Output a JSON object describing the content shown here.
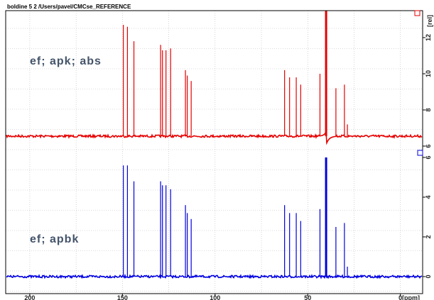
{
  "header": {
    "text": "boldine 5 2 /Users/pavel/CMCse_REFERENCE"
  },
  "colors": {
    "top_trace": "#e60000",
    "bottom_trace": "#0000e0",
    "grid": "#b8b8b8",
    "frame": "#000000",
    "label": "#44546a"
  },
  "chart_data": {
    "type": "line",
    "title": "",
    "xlabel": "[ppm]",
    "ylabel": "[rel]",
    "x_reversed": true,
    "xlim": [
      213,
      -12
    ],
    "xticks": [
      200,
      150,
      100,
      50,
      0
    ],
    "grid": true,
    "series": [
      {
        "name": "ef; apk; abs",
        "color": "#e60000",
        "baseline": 6.55,
        "yticks": [
          6,
          8,
          10,
          12
        ],
        "peaks": [
          {
            "x": 149.5,
            "y": 12.7
          },
          {
            "x": 147.3,
            "y": 12.6
          },
          {
            "x": 143.8,
            "y": 11.8
          },
          {
            "x": 129.4,
            "y": 11.6
          },
          {
            "x": 128.4,
            "y": 11.3
          },
          {
            "x": 126.5,
            "y": 11.3
          },
          {
            "x": 124.0,
            "y": 11.4
          },
          {
            "x": 116.0,
            "y": 10.2
          },
          {
            "x": 115.0,
            "y": 9.9
          },
          {
            "x": 112.9,
            "y": 9.6
          },
          {
            "x": 62.5,
            "y": 10.2
          },
          {
            "x": 59.8,
            "y": 9.8
          },
          {
            "x": 56.2,
            "y": 9.8
          },
          {
            "x": 53.8,
            "y": 9.4
          },
          {
            "x": 43.4,
            "y": 10.0
          },
          {
            "x": 40.1,
            "y": 13.6
          },
          {
            "x": 34.8,
            "y": 9.2
          },
          {
            "x": 30.2,
            "y": 9.4
          },
          {
            "x": 28.6,
            "y": 7.2
          }
        ],
        "dispersive_at": 40.1
      },
      {
        "name": "ef; apbk",
        "color": "#0000e0",
        "baseline": 0.0,
        "yticks": [
          0,
          2,
          4,
          6
        ],
        "peaks": [
          {
            "x": 149.5,
            "y": 5.6
          },
          {
            "x": 147.3,
            "y": 5.6
          },
          {
            "x": 143.8,
            "y": 4.8
          },
          {
            "x": 129.4,
            "y": 4.8
          },
          {
            "x": 128.4,
            "y": 4.6
          },
          {
            "x": 126.5,
            "y": 4.6
          },
          {
            "x": 124.0,
            "y": 4.4
          },
          {
            "x": 116.0,
            "y": 3.6
          },
          {
            "x": 115.0,
            "y": 3.2
          },
          {
            "x": 112.9,
            "y": 2.9
          },
          {
            "x": 62.5,
            "y": 3.6
          },
          {
            "x": 59.8,
            "y": 3.2
          },
          {
            "x": 56.2,
            "y": 3.2
          },
          {
            "x": 53.8,
            "y": 2.8
          },
          {
            "x": 43.4,
            "y": 3.4
          },
          {
            "x": 40.1,
            "y": 6.0
          },
          {
            "x": 34.8,
            "y": 2.5
          },
          {
            "x": 30.2,
            "y": 2.7
          },
          {
            "x": 28.6,
            "y": 0.5
          }
        ]
      }
    ]
  }
}
